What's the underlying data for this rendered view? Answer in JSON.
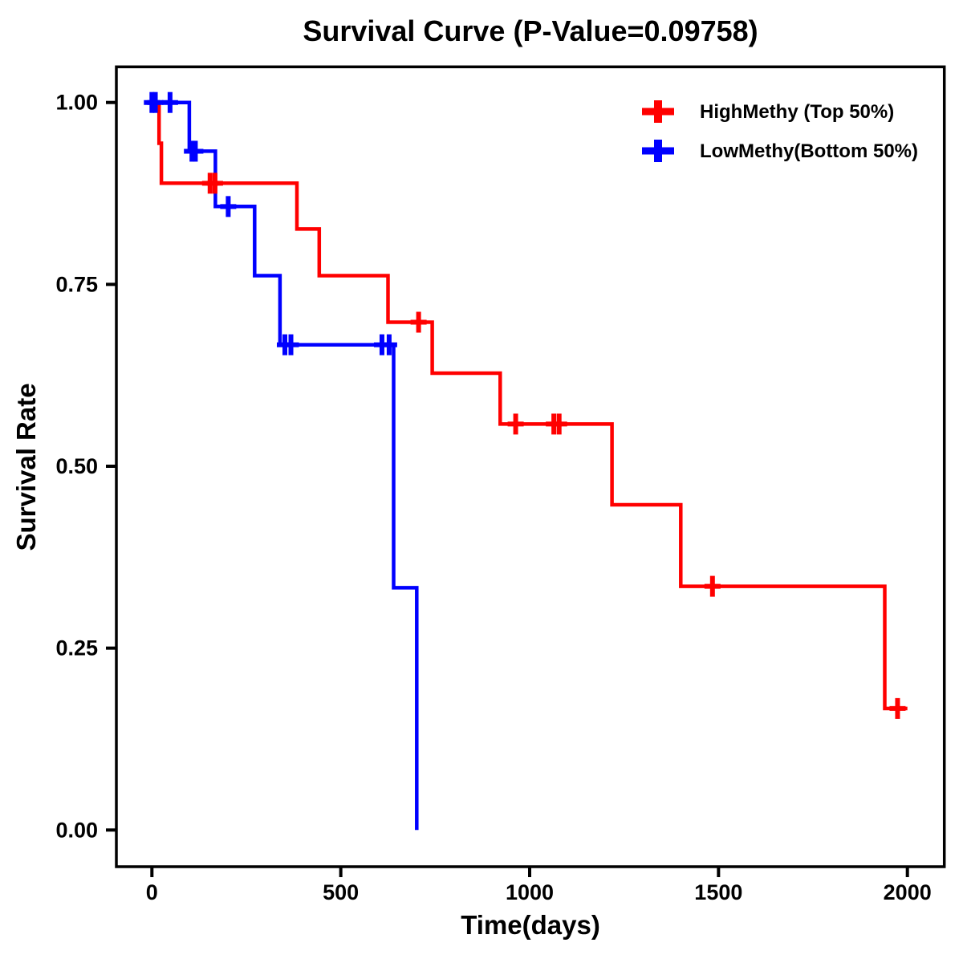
{
  "title": "Survival Curve (P-Value=0.09758)",
  "chart_data": {
    "type": "line",
    "subtype": "kaplan-meier-step",
    "title": "Survival Curve (P-Value=0.09758)",
    "xlabel": "Time(days)",
    "ylabel": "Survival Rate",
    "xlim": [
      0,
      2000
    ],
    "ylim": [
      0.0,
      1.0
    ],
    "xticks": [
      0,
      500,
      1000,
      1500,
      2000
    ],
    "yticks": [
      0.0,
      0.25,
      0.5,
      0.75,
      1.0
    ],
    "ytick_labels": [
      "0.00",
      "0.25",
      "0.50",
      "0.75",
      "1.00"
    ],
    "xtick_labels": [
      "0",
      "500",
      "1000",
      "1500",
      "2000"
    ],
    "grid": false,
    "legend_position": "top-right",
    "frame_color": "#000000",
    "background_color": "#ffffff",
    "series": [
      {
        "name": "HighMethy (Top 50%)",
        "color": "#ff0000",
        "steps": [
          [
            0,
            1.0
          ],
          [
            19,
            0.944
          ],
          [
            25,
            0.889
          ],
          [
            384,
            0.826
          ],
          [
            443,
            0.762
          ],
          [
            625,
            0.698
          ],
          [
            742,
            0.628
          ],
          [
            922,
            0.558
          ],
          [
            1218,
            0.447
          ],
          [
            1400,
            0.335
          ],
          [
            1940,
            0.167
          ]
        ],
        "end_time": 2000,
        "censor_marks": [
          [
            154,
            0.889
          ],
          [
            167,
            0.889
          ],
          [
            706,
            0.698
          ],
          [
            963,
            0.558
          ],
          [
            1064,
            0.558
          ],
          [
            1078,
            0.558
          ],
          [
            1484,
            0.335
          ],
          [
            1974,
            0.167
          ]
        ]
      },
      {
        "name": "LowMethy(Bottom 50%)",
        "color": "#0000ff",
        "steps": [
          [
            0,
            1.0
          ],
          [
            99,
            0.933
          ],
          [
            168,
            0.857
          ],
          [
            272,
            0.762
          ],
          [
            339,
            0.667
          ],
          [
            640,
            0.333
          ],
          [
            701,
            0.0
          ]
        ],
        "end_time": 701,
        "censor_marks": [
          [
            0,
            1.0
          ],
          [
            9,
            1.0
          ],
          [
            48,
            1.0
          ],
          [
            106,
            0.933
          ],
          [
            115,
            0.933
          ],
          [
            202,
            0.857
          ],
          [
            352,
            0.667
          ],
          [
            368,
            0.667
          ],
          [
            609,
            0.667
          ],
          [
            628,
            0.667
          ]
        ]
      }
    ]
  },
  "legend": {
    "items": [
      {
        "label": "HighMethy (Top 50%)",
        "color": "#ff0000",
        "symbol": "plus"
      },
      {
        "label": "LowMethy(Bottom 50%)",
        "color": "#0000ff",
        "symbol": "plus"
      }
    ]
  }
}
